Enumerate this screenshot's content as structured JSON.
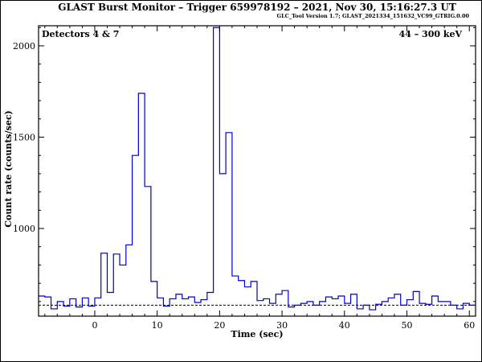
{
  "chart_data": {
    "type": "line",
    "title": "GLAST Burst Monitor  –  Trigger 659978192  –  2021, Nov 30, 15:16:27.3 UT",
    "subtitle": "GLC_Tool Version 1.7; GLAST_2021334_151632_VC99_GTRIG.0.00",
    "xlabel": "Time (sec)",
    "ylabel": "Count rate (counts/sec)",
    "detectors_label": "Detectors 4 & 7",
    "energy_label": "44 – 300 keV",
    "xlim": [
      -9,
      61
    ],
    "ylim": [
      520,
      2110
    ],
    "x_ticks": [
      0,
      10,
      20,
      30,
      40,
      50,
      60
    ],
    "y_ticks": [
      1000,
      1500,
      2000
    ],
    "background_level": 580,
    "line_color": "#0000cc",
    "background_color": "#000000",
    "bin_edges": [
      -9,
      -8,
      -7,
      -6,
      -5,
      -4,
      -3,
      -2,
      -1,
      0,
      1,
      2,
      3,
      4,
      5,
      6,
      7,
      8,
      9,
      10,
      11,
      12,
      13,
      14,
      15,
      16,
      17,
      18,
      19,
      20,
      21,
      22,
      23,
      24,
      25,
      26,
      27,
      28,
      29,
      30,
      31,
      32,
      33,
      34,
      35,
      36,
      37,
      38,
      39,
      40,
      41,
      42,
      43,
      44,
      45,
      46,
      47,
      48,
      49,
      50,
      51,
      52,
      53,
      54,
      55,
      56,
      57,
      58,
      59,
      60,
      61
    ],
    "values": [
      630,
      625,
      560,
      600,
      575,
      615,
      570,
      620,
      575,
      620,
      865,
      650,
      860,
      800,
      910,
      1400,
      1740,
      1230,
      710,
      620,
      575,
      615,
      640,
      615,
      625,
      595,
      610,
      650,
      2100,
      1300,
      1525,
      740,
      715,
      680,
      710,
      605,
      615,
      590,
      640,
      660,
      570,
      580,
      590,
      600,
      580,
      600,
      625,
      615,
      630,
      590,
      640,
      560,
      580,
      555,
      585,
      600,
      620,
      640,
      580,
      610,
      655,
      590,
      585,
      630,
      600,
      600,
      580,
      560,
      590,
      580
    ]
  }
}
